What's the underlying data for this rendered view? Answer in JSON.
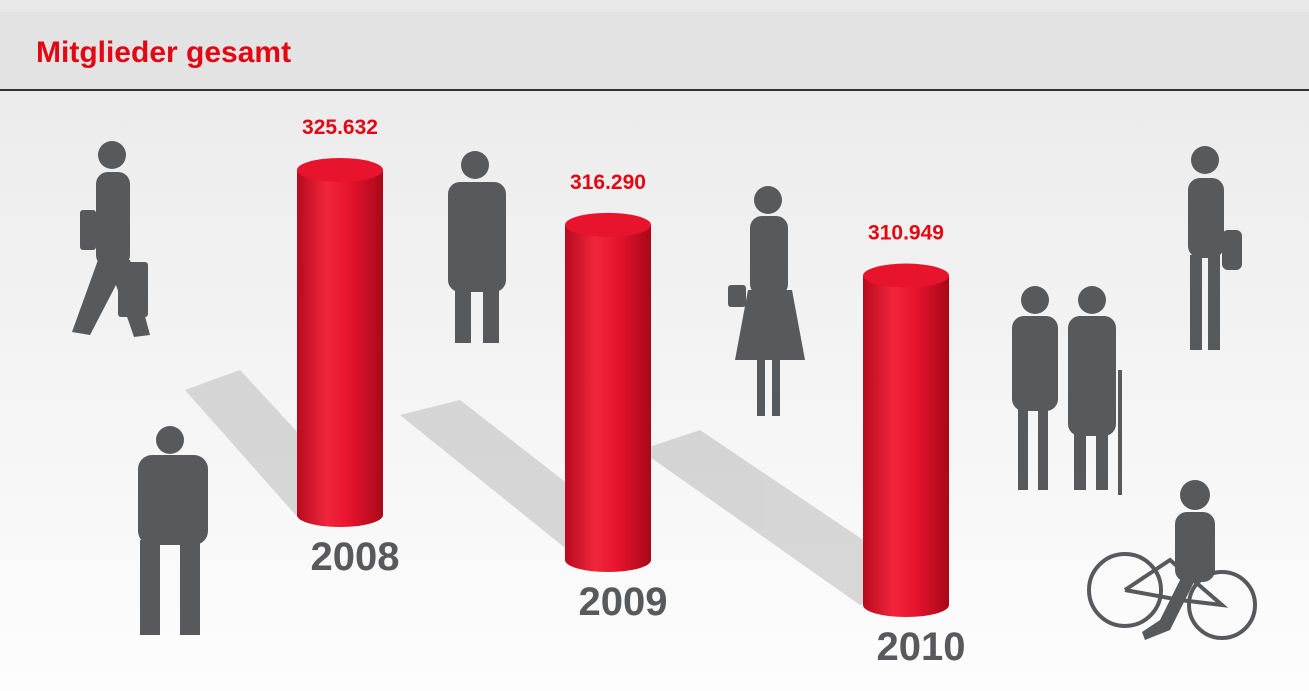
{
  "chart_data": {
    "type": "cylinder",
    "title": "Mitglieder gesamt",
    "categories": [
      "2008",
      "2009",
      "2010"
    ],
    "values": [
      325632,
      316290,
      310949
    ],
    "value_labels": [
      "325.632",
      "316.290",
      "310.949"
    ],
    "color": "#e8142e"
  }
}
